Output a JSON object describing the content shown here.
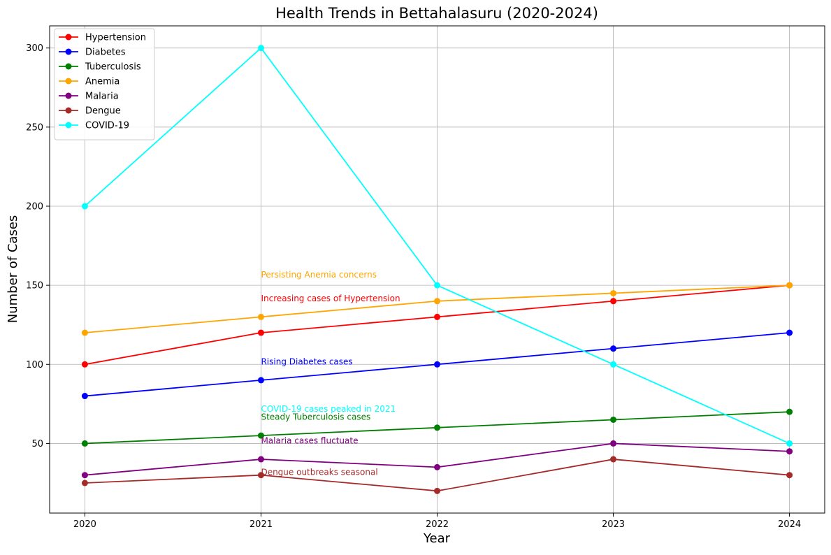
{
  "chart_data": {
    "type": "line",
    "title": "Health Trends in Bettahalasuru (2020-2024)",
    "xlabel": "Year",
    "ylabel": "Number of Cases",
    "x": [
      2020,
      2021,
      2022,
      2023,
      2024
    ],
    "x_ticks": [
      "2020",
      "2021",
      "2022",
      "2023",
      "2024"
    ],
    "y_ticks": [
      50,
      100,
      150,
      200,
      250,
      300
    ],
    "xlim": [
      2019.8,
      2024.2
    ],
    "ylim": [
      6,
      314
    ],
    "grid": true,
    "legend_position": "top-left",
    "series": [
      {
        "name": "Hypertension",
        "color": "#ff0000",
        "values": [
          100,
          120,
          130,
          140,
          150
        ]
      },
      {
        "name": "Diabetes",
        "color": "#0000ff",
        "values": [
          80,
          90,
          100,
          110,
          120
        ]
      },
      {
        "name": "Tuberculosis",
        "color": "#008000",
        "values": [
          50,
          55,
          60,
          65,
          70
        ]
      },
      {
        "name": "Anemia",
        "color": "#ffa500",
        "values": [
          120,
          130,
          140,
          145,
          150
        ]
      },
      {
        "name": "Malaria",
        "color": "#800080",
        "values": [
          30,
          40,
          35,
          50,
          45
        ]
      },
      {
        "name": "Dengue",
        "color": "#a52a2a",
        "values": [
          25,
          30,
          20,
          40,
          30
        ]
      },
      {
        "name": "COVID-19",
        "color": "#00ffff",
        "values": [
          200,
          300,
          150,
          100,
          50
        ]
      }
    ],
    "annotations": [
      {
        "text": "Persisting Anemia concerns",
        "x": 2021,
        "y": 155,
        "color": "#ffa500"
      },
      {
        "text": "Increasing cases of Hypertension",
        "x": 2021,
        "y": 140,
        "color": "#ff0000"
      },
      {
        "text": "Rising Diabetes cases",
        "x": 2021,
        "y": 100,
        "color": "#0000ff"
      },
      {
        "text": "COVID-19 cases peaked in 2021",
        "x": 2021,
        "y": 70,
        "color": "#00ffff"
      },
      {
        "text": "Steady Tuberculosis cases",
        "x": 2021,
        "y": 65,
        "color": "#008000"
      },
      {
        "text": "Malaria cases fluctuate",
        "x": 2021,
        "y": 50,
        "color": "#800080"
      },
      {
        "text": "Dengue outbreaks seasonal",
        "x": 2021,
        "y": 30,
        "color": "#a52a2a"
      }
    ]
  }
}
